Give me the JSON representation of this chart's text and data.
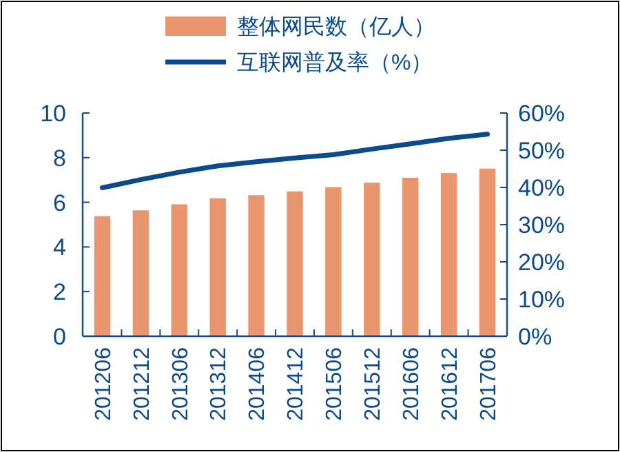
{
  "chart_data": {
    "type": "bar",
    "categories": [
      "201206",
      "201212",
      "201306",
      "201312",
      "201406",
      "201412",
      "201506",
      "201512",
      "201606",
      "201612",
      "201706"
    ],
    "series": [
      {
        "name": "整体网民数（亿人）",
        "color": "#e9966f",
        "values": [
          5.38,
          5.64,
          5.91,
          6.18,
          6.32,
          6.49,
          6.68,
          6.88,
          7.1,
          7.31,
          7.51
        ]
      },
      {
        "name": "互联网普及率（%）",
        "type": "line",
        "axis": "y2",
        "color": "#0b4a8b",
        "values": [
          39.9,
          42.1,
          44.1,
          45.8,
          46.9,
          47.9,
          48.8,
          50.3,
          51.7,
          53.2,
          54.3
        ]
      }
    ],
    "ylim": [
      0,
      10
    ],
    "yticks": [
      0,
      2,
      4,
      6,
      8,
      10
    ],
    "y2lim": [
      0,
      60
    ],
    "y2ticks": [
      {
        "value": 0,
        "label": "0%"
      },
      {
        "value": 10,
        "label": "10%"
      },
      {
        "value": 20,
        "label": "20%"
      },
      {
        "value": 30,
        "label": "30%"
      },
      {
        "value": 40,
        "label": "40%"
      },
      {
        "value": 50,
        "label": "50%"
      },
      {
        "value": 60,
        "label": "60%"
      }
    ],
    "legend": "top",
    "grid": false
  }
}
